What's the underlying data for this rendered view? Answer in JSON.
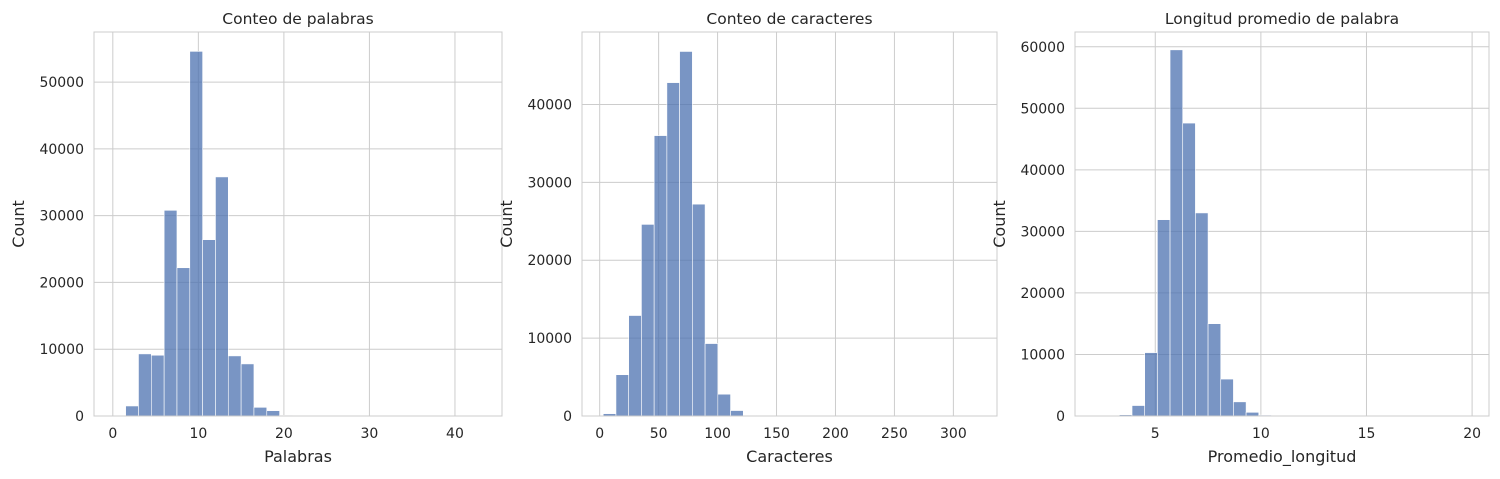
{
  "chart_data": [
    {
      "type": "bar",
      "title": "Conteo de palabras",
      "xlabel": "Palabras",
      "ylabel": "Count",
      "xlim": [
        -2.2,
        45.5
      ],
      "ylim": [
        0,
        57500
      ],
      "xticks": [
        0,
        10,
        20,
        30,
        40
      ],
      "yticks": [
        0,
        10000,
        20000,
        30000,
        40000,
        50000
      ],
      "grid": true,
      "bins": [
        {
          "x0": 1.5,
          "x1": 3.0,
          "count": 1500
        },
        {
          "x0": 3.0,
          "x1": 4.5,
          "count": 9300
        },
        {
          "x0": 4.5,
          "x1": 6.0,
          "count": 9100
        },
        {
          "x0": 6.0,
          "x1": 7.5,
          "count": 30800
        },
        {
          "x0": 7.5,
          "x1": 9.0,
          "count": 22200
        },
        {
          "x0": 9.0,
          "x1": 10.5,
          "count": 54600
        },
        {
          "x0": 10.5,
          "x1": 12.0,
          "count": 26400
        },
        {
          "x0": 12.0,
          "x1": 13.5,
          "count": 35800
        },
        {
          "x0": 13.5,
          "x1": 15.0,
          "count": 9000
        },
        {
          "x0": 15.0,
          "x1": 16.5,
          "count": 7800
        },
        {
          "x0": 16.5,
          "x1": 18.0,
          "count": 1300
        },
        {
          "x0": 18.0,
          "x1": 19.5,
          "count": 800
        },
        {
          "x0": 19.5,
          "x1": 21.0,
          "count": 100
        },
        {
          "x0": 21.0,
          "x1": 22.5,
          "count": 50
        },
        {
          "x0": 22.5,
          "x1": 24.0,
          "count": 20
        },
        {
          "x0": 24.0,
          "x1": 25.5,
          "count": 10
        },
        {
          "x0": 25.5,
          "x1": 27.0,
          "count": 5
        },
        {
          "x0": 27.0,
          "x1": 28.5,
          "count": 5
        },
        {
          "x0": 28.5,
          "x1": 30.0,
          "count": 3
        },
        {
          "x0": 30.0,
          "x1": 31.5,
          "count": 2
        },
        {
          "x0": 31.5,
          "x1": 33.0,
          "count": 2
        },
        {
          "x0": 33.0,
          "x1": 34.5,
          "count": 1
        },
        {
          "x0": 34.5,
          "x1": 36.0,
          "count": 1
        },
        {
          "x0": 36.0,
          "x1": 37.5,
          "count": 1
        },
        {
          "x0": 37.5,
          "x1": 39.0,
          "count": 1
        },
        {
          "x0": 39.0,
          "x1": 40.5,
          "count": 1
        },
        {
          "x0": 40.5,
          "x1": 42.0,
          "count": 1
        },
        {
          "x0": 42.0,
          "x1": 43.5,
          "count": 1
        }
      ]
    },
    {
      "type": "bar",
      "title": "Conteo de caracteres",
      "xlabel": "Caracteres",
      "ylabel": "Count",
      "xlim": [
        -15,
        337
      ],
      "ylim": [
        0,
        49300
      ],
      "xticks": [
        0,
        50,
        100,
        150,
        200,
        250,
        300
      ],
      "yticks": [
        0,
        10000,
        20000,
        30000,
        40000
      ],
      "grid": true,
      "bins": [
        {
          "x0": 3,
          "x1": 13.8,
          "count": 300
        },
        {
          "x0": 13.8,
          "x1": 24.6,
          "count": 5300
        },
        {
          "x0": 24.6,
          "x1": 35.4,
          "count": 12900
        },
        {
          "x0": 35.4,
          "x1": 46.2,
          "count": 24600
        },
        {
          "x0": 46.2,
          "x1": 57.0,
          "count": 36000
        },
        {
          "x0": 57.0,
          "x1": 67.8,
          "count": 42800
        },
        {
          "x0": 67.8,
          "x1": 78.6,
          "count": 46800
        },
        {
          "x0": 78.6,
          "x1": 89.4,
          "count": 27200
        },
        {
          "x0": 89.4,
          "x1": 100.2,
          "count": 9300
        },
        {
          "x0": 100.2,
          "x1": 111.0,
          "count": 2800
        },
        {
          "x0": 111.0,
          "x1": 121.8,
          "count": 700
        },
        {
          "x0": 121.8,
          "x1": 132.6,
          "count": 100
        },
        {
          "x0": 132.6,
          "x1": 143.4,
          "count": 30
        },
        {
          "x0": 143.4,
          "x1": 154.2,
          "count": 10
        },
        {
          "x0": 154.2,
          "x1": 165.0,
          "count": 5
        },
        {
          "x0": 165.0,
          "x1": 175.8,
          "count": 3
        },
        {
          "x0": 175.8,
          "x1": 186.6,
          "count": 2
        },
        {
          "x0": 186.6,
          "x1": 197.4,
          "count": 2
        },
        {
          "x0": 197.4,
          "x1": 208.2,
          "count": 1
        },
        {
          "x0": 208.2,
          "x1": 219.0,
          "count": 1
        },
        {
          "x0": 219.0,
          "x1": 229.8,
          "count": 1
        },
        {
          "x0": 229.8,
          "x1": 240.6,
          "count": 1
        },
        {
          "x0": 240.6,
          "x1": 251.4,
          "count": 1
        },
        {
          "x0": 251.4,
          "x1": 262.2,
          "count": 1
        },
        {
          "x0": 262.2,
          "x1": 273.0,
          "count": 1
        },
        {
          "x0": 273.0,
          "x1": 283.8,
          "count": 1
        },
        {
          "x0": 283.8,
          "x1": 294.6,
          "count": 1
        },
        {
          "x0": 294.6,
          "x1": 305.4,
          "count": 1
        },
        {
          "x0": 305.4,
          "x1": 316.2,
          "count": 1
        }
      ]
    },
    {
      "type": "bar",
      "title": "Longitud promedio de palabra",
      "xlabel": "Promedio_longitud",
      "ylabel": "Count",
      "xlim": [
        1.2,
        20.8
      ],
      "ylim": [
        0,
        62400
      ],
      "xticks": [
        5,
        10,
        15,
        20
      ],
      "yticks": [
        0,
        10000,
        20000,
        30000,
        40000,
        50000,
        60000
      ],
      "grid": true,
      "bins": [
        {
          "x0": 2.1,
          "x1": 2.7,
          "count": 10
        },
        {
          "x0": 2.7,
          "x1": 3.3,
          "count": 40
        },
        {
          "x0": 3.3,
          "x1": 3.9,
          "count": 200
        },
        {
          "x0": 3.9,
          "x1": 4.5,
          "count": 1700
        },
        {
          "x0": 4.5,
          "x1": 5.1,
          "count": 10300
        },
        {
          "x0": 5.1,
          "x1": 5.7,
          "count": 31900
        },
        {
          "x0": 5.7,
          "x1": 6.3,
          "count": 59500
        },
        {
          "x0": 6.3,
          "x1": 6.9,
          "count": 47600
        },
        {
          "x0": 6.9,
          "x1": 7.5,
          "count": 33000
        },
        {
          "x0": 7.5,
          "x1": 8.1,
          "count": 15000
        },
        {
          "x0": 8.1,
          "x1": 8.7,
          "count": 6000
        },
        {
          "x0": 8.7,
          "x1": 9.3,
          "count": 2300
        },
        {
          "x0": 9.3,
          "x1": 9.9,
          "count": 600
        },
        {
          "x0": 9.9,
          "x1": 10.5,
          "count": 150
        },
        {
          "x0": 10.5,
          "x1": 11.1,
          "count": 50
        },
        {
          "x0": 11.1,
          "x1": 11.7,
          "count": 20
        },
        {
          "x0": 11.7,
          "x1": 12.3,
          "count": 10
        },
        {
          "x0": 12.3,
          "x1": 12.9,
          "count": 5
        },
        {
          "x0": 12.9,
          "x1": 13.5,
          "count": 3
        },
        {
          "x0": 13.5,
          "x1": 14.1,
          "count": 2
        },
        {
          "x0": 14.1,
          "x1": 14.7,
          "count": 2
        },
        {
          "x0": 14.7,
          "x1": 15.3,
          "count": 1
        },
        {
          "x0": 15.3,
          "x1": 15.9,
          "count": 1
        },
        {
          "x0": 15.9,
          "x1": 16.5,
          "count": 1
        },
        {
          "x0": 16.5,
          "x1": 17.1,
          "count": 1
        },
        {
          "x0": 17.1,
          "x1": 17.7,
          "count": 1
        },
        {
          "x0": 17.7,
          "x1": 18.3,
          "count": 1
        },
        {
          "x0": 18.3,
          "x1": 18.9,
          "count": 1
        },
        {
          "x0": 18.9,
          "x1": 19.5,
          "count": 1
        },
        {
          "x0": 19.5,
          "x1": 20.1,
          "count": 1
        }
      ]
    }
  ]
}
